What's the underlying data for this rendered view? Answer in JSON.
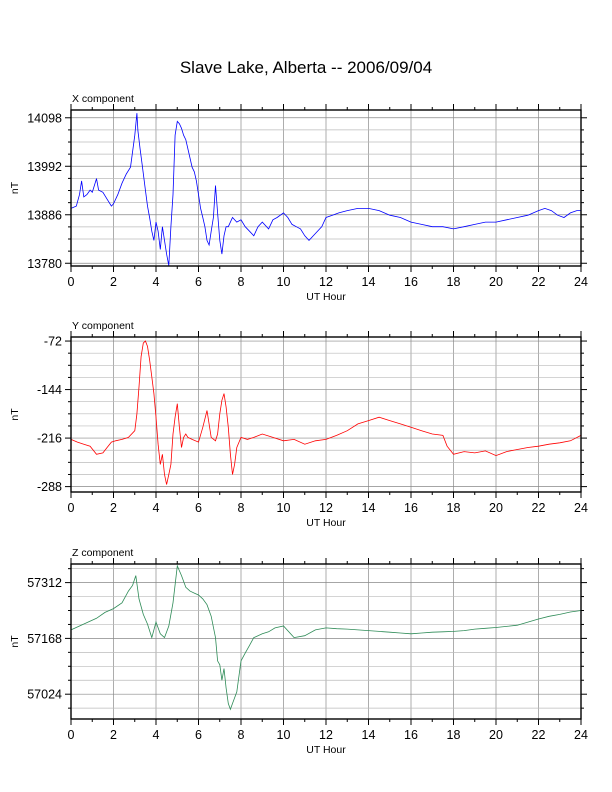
{
  "title": "Slave Lake, Alberta -- 2006/09/04",
  "chart_data": [
    {
      "type": "line",
      "panel_title": "X component",
      "xlabel": "UT Hour",
      "ylabel": "nT",
      "xlim": [
        0,
        24
      ],
      "ylim": [
        13774,
        14115
      ],
      "xticks": [
        0,
        2,
        4,
        6,
        8,
        10,
        12,
        14,
        16,
        18,
        20,
        22,
        24
      ],
      "yticks": [
        13780,
        13886,
        13992,
        14098
      ],
      "grid": true,
      "color": "#0000ff",
      "series": [
        {
          "x": [
            0.0,
            0.25,
            0.4,
            0.5,
            0.6,
            0.75,
            0.9,
            1.0,
            1.2,
            1.3,
            1.5,
            1.7,
            1.9,
            2.0,
            2.2,
            2.4,
            2.6,
            2.8,
            3.0,
            3.1,
            3.15,
            3.25,
            3.35,
            3.5,
            3.6,
            3.7,
            3.8,
            3.9,
            4.0,
            4.1,
            4.2,
            4.3,
            4.4,
            4.5,
            4.6,
            4.7,
            4.8,
            4.9,
            5.0,
            5.1,
            5.2,
            5.3,
            5.4,
            5.5,
            5.6,
            5.7,
            5.8,
            5.9,
            6.0,
            6.1,
            6.2,
            6.3,
            6.4,
            6.5,
            6.6,
            6.7,
            6.8,
            6.9,
            7.0,
            7.1,
            7.2,
            7.3,
            7.4,
            7.5,
            7.6,
            7.8,
            8.0,
            8.2,
            8.4,
            8.6,
            8.8,
            9.0,
            9.3,
            9.5,
            9.7,
            10.0,
            10.2,
            10.4,
            10.6,
            10.8,
            11.0,
            11.2,
            11.5,
            11.8,
            12.0,
            12.3,
            12.6,
            13.0,
            13.5,
            14.0,
            14.5,
            15.0,
            15.5,
            16.0,
            16.5,
            17.0,
            17.5,
            18.0,
            18.5,
            19.0,
            19.5,
            20.0,
            20.5,
            21.0,
            21.5,
            22.0,
            22.3,
            22.6,
            22.9,
            23.2,
            23.5,
            23.8,
            24.0
          ],
          "values": [
            13900,
            13905,
            13930,
            13960,
            13925,
            13930,
            13940,
            13935,
            13965,
            13940,
            13935,
            13920,
            13905,
            13910,
            13930,
            13955,
            13975,
            13990,
            14060,
            14108,
            14070,
            14030,
            13995,
            13940,
            13905,
            13880,
            13850,
            13830,
            13870,
            13850,
            13810,
            13860,
            13830,
            13800,
            13775,
            13860,
            13930,
            14060,
            14090,
            14085,
            14075,
            14060,
            14050,
            14030,
            14010,
            13990,
            13980,
            13960,
            13930,
            13900,
            13880,
            13860,
            13830,
            13820,
            13850,
            13880,
            13950,
            13890,
            13830,
            13800,
            13840,
            13860,
            13860,
            13870,
            13880,
            13870,
            13875,
            13860,
            13850,
            13840,
            13860,
            13870,
            13855,
            13875,
            13880,
            13890,
            13880,
            13865,
            13860,
            13855,
            13840,
            13830,
            13845,
            13860,
            13880,
            13885,
            13890,
            13895,
            13900,
            13900,
            13895,
            13885,
            13880,
            13870,
            13865,
            13860,
            13860,
            13855,
            13860,
            13865,
            13870,
            13870,
            13875,
            13880,
            13885,
            13895,
            13900,
            13895,
            13885,
            13880,
            13890,
            13895,
            13895
          ]
        }
      ]
    },
    {
      "type": "line",
      "panel_title": "Y component",
      "xlabel": "UT Hour",
      "ylabel": "nT",
      "xlim": [
        0,
        24
      ],
      "ylim": [
        -296,
        -66
      ],
      "xticks": [
        0,
        2,
        4,
        6,
        8,
        10,
        12,
        14,
        16,
        18,
        20,
        22,
        24
      ],
      "yticks": [
        -72,
        -144,
        -216,
        -288
      ],
      "grid": true,
      "color": "#ff0000",
      "series": [
        {
          "x": [
            0.0,
            0.3,
            0.6,
            0.9,
            1.2,
            1.5,
            1.7,
            1.9,
            2.1,
            2.4,
            2.7,
            3.0,
            3.1,
            3.2,
            3.3,
            3.4,
            3.5,
            3.6,
            3.7,
            3.8,
            3.9,
            4.0,
            4.1,
            4.2,
            4.3,
            4.4,
            4.5,
            4.6,
            4.7,
            4.8,
            4.9,
            5.0,
            5.1,
            5.2,
            5.3,
            5.4,
            5.5,
            5.7,
            6.0,
            6.2,
            6.4,
            6.6,
            6.8,
            6.9,
            7.0,
            7.1,
            7.2,
            7.3,
            7.4,
            7.5,
            7.6,
            7.7,
            7.8,
            8.0,
            8.3,
            8.6,
            9.0,
            9.5,
            10.0,
            10.5,
            11.0,
            11.5,
            12.0,
            12.5,
            13.0,
            13.5,
            14.0,
            14.5,
            15.0,
            15.5,
            16.0,
            16.5,
            17.0,
            17.5,
            17.7,
            18.0,
            18.5,
            19.0,
            19.5,
            20.0,
            20.5,
            21.0,
            21.5,
            22.0,
            22.5,
            23.0,
            23.5,
            24.0
          ],
          "values": [
            -218,
            -222,
            -225,
            -228,
            -240,
            -238,
            -230,
            -222,
            -220,
            -218,
            -215,
            -205,
            -180,
            -140,
            -95,
            -75,
            -72,
            -80,
            -100,
            -125,
            -150,
            -185,
            -225,
            -255,
            -240,
            -270,
            -285,
            -270,
            -255,
            -210,
            -185,
            -165,
            -200,
            -230,
            -215,
            -210,
            -215,
            -218,
            -222,
            -200,
            -175,
            -215,
            -220,
            -210,
            -180,
            -160,
            -150,
            -170,
            -200,
            -240,
            -270,
            -255,
            -230,
            -215,
            -218,
            -215,
            -210,
            -215,
            -220,
            -218,
            -225,
            -220,
            -218,
            -212,
            -205,
            -195,
            -190,
            -185,
            -190,
            -195,
            -200,
            -205,
            -210,
            -212,
            -228,
            -240,
            -236,
            -238,
            -235,
            -242,
            -236,
            -233,
            -230,
            -228,
            -225,
            -223,
            -220,
            -212
          ]
        }
      ]
    },
    {
      "type": "line",
      "panel_title": "Z component",
      "xlabel": "UT Hour",
      "ylabel": "nT",
      "xlim": [
        0,
        24
      ],
      "ylim": [
        56960,
        57360
      ],
      "xticks": [
        0,
        2,
        4,
        6,
        8,
        10,
        12,
        14,
        16,
        18,
        20,
        22,
        24
      ],
      "yticks": [
        57024,
        57168,
        57312
      ],
      "grid": true,
      "color": "#2e8b57",
      "series": [
        {
          "x": [
            0.0,
            0.4,
            0.8,
            1.2,
            1.6,
            2.0,
            2.4,
            2.7,
            2.9,
            3.05,
            3.2,
            3.4,
            3.6,
            3.8,
            4.0,
            4.2,
            4.4,
            4.6,
            4.8,
            5.0,
            5.2,
            5.4,
            5.6,
            5.8,
            6.0,
            6.2,
            6.4,
            6.6,
            6.8,
            6.9,
            7.0,
            7.1,
            7.2,
            7.3,
            7.4,
            7.5,
            7.6,
            7.8,
            8.0,
            8.2,
            8.4,
            8.6,
            8.8,
            9.0,
            9.3,
            9.6,
            10.0,
            10.5,
            11.0,
            11.5,
            12.0,
            12.5,
            13.0,
            13.5,
            14.0,
            14.5,
            15.0,
            15.5,
            16.0,
            16.5,
            17.0,
            17.5,
            18.0,
            18.5,
            19.0,
            19.5,
            20.0,
            20.5,
            21.0,
            21.5,
            22.0,
            22.5,
            23.0,
            23.5,
            24.0
          ],
          "values": [
            57190,
            57200,
            57210,
            57220,
            57235,
            57245,
            57260,
            57290,
            57305,
            57330,
            57270,
            57230,
            57205,
            57170,
            57210,
            57180,
            57170,
            57200,
            57260,
            57355,
            57330,
            57300,
            57290,
            57285,
            57280,
            57270,
            57255,
            57225,
            57170,
            57110,
            57100,
            57060,
            57090,
            57040,
            57000,
            56985,
            57000,
            57030,
            57110,
            57130,
            57150,
            57170,
            57175,
            57180,
            57185,
            57195,
            57200,
            57170,
            57175,
            57190,
            57195,
            57193,
            57192,
            57190,
            57188,
            57186,
            57184,
            57182,
            57180,
            57182,
            57184,
            57185,
            57186,
            57188,
            57192,
            57194,
            57196,
            57199,
            57202,
            57210,
            57218,
            57225,
            57230,
            57236,
            57240
          ]
        }
      ]
    }
  ]
}
